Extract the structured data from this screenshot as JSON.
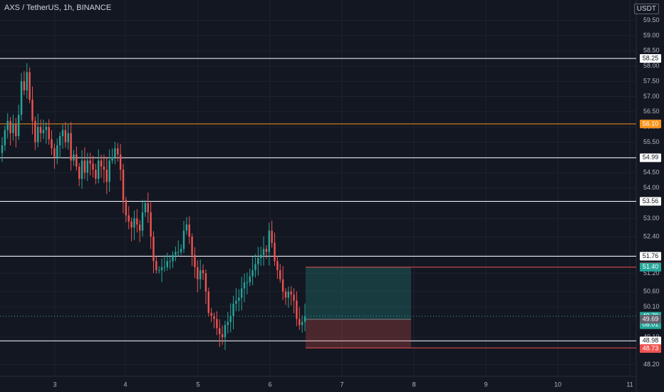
{
  "header": {
    "symbol_line": "AXS / TetherUS, 1h, BINANCE",
    "currency": "USDT"
  },
  "colors": {
    "background": "#131722",
    "grid": "#1e222d",
    "up": "#26a69a",
    "down": "#ef5350",
    "text": "#b2b5be",
    "level_white": "#ffffff",
    "level_orange": "#f7931a",
    "profit_zone": "#26a69a",
    "loss_zone": "#ef5350"
  },
  "chart_data": {
    "type": "candlestick",
    "timeframe": "1h",
    "x_axis": {
      "tick_labels": [
        "3",
        "4",
        "5",
        "6",
        "7",
        "8",
        "9",
        "10",
        "11"
      ]
    },
    "y_axis": {
      "range": [
        47.9,
        59.9
      ],
      "tick_labels": [
        "59.50",
        "59.00",
        "58.50",
        "58.00",
        "57.50",
        "57.00",
        "56.50",
        "56.00",
        "55.50",
        "55.00",
        "54.50",
        "54.00",
        "53.50",
        "53.00",
        "52.40",
        "51.80",
        "51.20",
        "50.60",
        "50.10",
        "49.10",
        "48.20"
      ]
    },
    "horizontal_levels": [
      {
        "price": 58.25,
        "label": "58.25",
        "color": "#ffffff"
      },
      {
        "price": 56.1,
        "label": "56.10",
        "color": "#f7931a"
      },
      {
        "price": 54.99,
        "label": "54.99",
        "color": "#ffffff"
      },
      {
        "price": 53.56,
        "label": "53.56",
        "color": "#ffffff"
      },
      {
        "price": 51.76,
        "label": "51.76",
        "color": "#ffffff"
      },
      {
        "price": 48.98,
        "label": "48.98",
        "color": "#ffffff"
      }
    ],
    "position": {
      "entry": 49.69,
      "target": 51.4,
      "stop": 48.75,
      "target_label": "51.40",
      "stop_label": "48.75",
      "entry_label": "49.69"
    },
    "price_badges": [
      {
        "price": 51.41,
        "label": "51.41",
        "color": "#ef5350"
      },
      {
        "price": 51.4,
        "label": "51.40",
        "color": "#26a69a"
      },
      {
        "price": 49.79,
        "label": "49.79",
        "color": "#26a69a",
        "sublabel": "08:01"
      },
      {
        "price": 48.73,
        "label": "48.73",
        "color": "#ef5350"
      }
    ],
    "current_price": 49.79,
    "close_series": [
      55.4,
      55.9,
      56.2,
      55.8,
      56.1,
      55.7,
      56.4,
      57.5,
      57.2,
      57.8,
      56.9,
      56.2,
      55.5,
      56.0,
      55.8,
      55.9,
      56.0,
      55.6,
      55.3,
      55.0,
      55.4,
      55.7,
      55.9,
      55.5,
      55.8,
      54.9,
      55.1,
      54.7,
      54.3,
      54.9,
      54.5,
      54.9,
      54.8,
      54.6,
      54.3,
      54.9,
      54.7,
      54.6,
      54.2,
      54.9,
      55.0,
      55.3,
      55.1,
      54.6,
      53.6,
      53.1,
      52.9,
      52.7,
      53.0,
      52.8,
      52.6,
      53.2,
      53.5,
      53.2,
      52.4,
      51.6,
      51.3,
      51.3,
      51.4,
      51.4,
      51.6,
      51.6,
      51.8,
      51.9,
      51.9,
      52.0,
      52.6,
      52.8,
      52.4,
      51.8,
      51.4,
      51.0,
      51.3,
      51.2,
      50.6,
      49.9,
      49.8,
      49.7,
      49.4,
      49.2,
      49.1,
      49.5,
      49.6,
      49.8,
      50.2,
      50.3,
      50.4,
      50.7,
      50.9,
      50.9,
      51.1,
      51.3,
      51.5,
      51.7,
      51.8,
      52.0,
      51.9,
      52.6,
      52.2,
      51.6,
      51.3,
      51.0,
      50.6,
      50.4,
      50.6,
      50.5,
      50.3,
      49.7,
      49.5,
      49.6,
      49.79
    ]
  }
}
